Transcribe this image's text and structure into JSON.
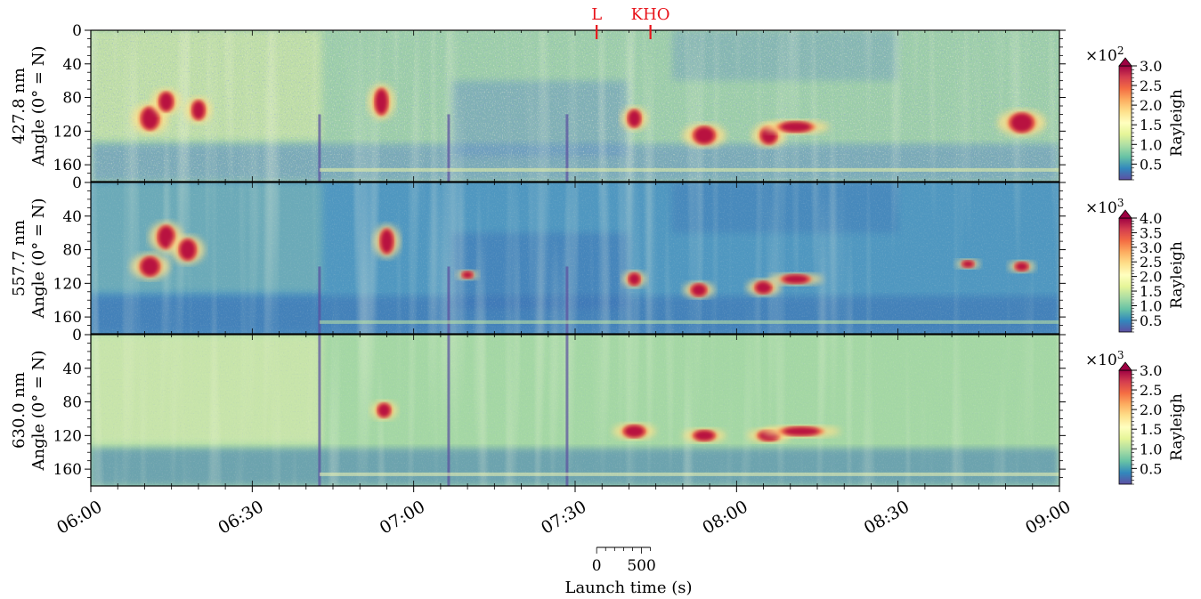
{
  "chart_data": {
    "type": "heatmap",
    "time_axis": {
      "ticks": [
        "06:00",
        "06:30",
        "07:00",
        "07:30",
        "08:00",
        "08:30",
        "09:00"
      ],
      "range_minutes": [
        0,
        180
      ]
    },
    "markers": [
      {
        "label": "L",
        "time_minutes": 94,
        "color": "#e8141b"
      },
      {
        "label": "KHO",
        "time_minutes": 104,
        "color": "#e8141b"
      }
    ],
    "panels": [
      {
        "name": "427.8 nm",
        "ylabel": "Angle (0° = N)",
        "yticks": [
          "0",
          "40",
          "80",
          "120",
          "160"
        ],
        "ylim": [
          0,
          180
        ],
        "colorbar": {
          "label": "Rayleigh",
          "exponent": "×10",
          "power": "2",
          "ticks": [
            "3.0",
            "2.5",
            "2.0",
            "1.5",
            "1.0",
            "0.5"
          ],
          "range": [
            0.1,
            3.0
          ]
        },
        "events": [
          {
            "t": 11,
            "angle": 105,
            "w": 2.4,
            "h": 26
          },
          {
            "t": 14,
            "angle": 85,
            "w": 1.8,
            "h": 22
          },
          {
            "t": 20,
            "angle": 95,
            "w": 1.6,
            "h": 22
          },
          {
            "t": 54,
            "angle": 85,
            "w": 1.6,
            "h": 30
          },
          {
            "t": 101,
            "angle": 105,
            "w": 1.6,
            "h": 20
          },
          {
            "t": 114,
            "angle": 125,
            "w": 3.0,
            "h": 20
          },
          {
            "t": 126,
            "angle": 125,
            "w": 2.2,
            "h": 20
          },
          {
            "t": 131,
            "angle": 115,
            "w": 5.0,
            "h": 12
          },
          {
            "t": 173,
            "angle": 110,
            "w": 3.4,
            "h": 22
          }
        ]
      },
      {
        "name": "557.7 nm",
        "ylabel": "Angle (0° = N)",
        "yticks": [
          "0",
          "40",
          "80",
          "120",
          "160"
        ],
        "ylim": [
          0,
          180
        ],
        "colorbar": {
          "label": "Rayleigh",
          "exponent": "×10",
          "power": "3",
          "ticks": [
            "4.0",
            "3.5",
            "3.0",
            "2.5",
            "2.0",
            "1.5",
            "1.0",
            "0.5"
          ],
          "range": [
            0.1,
            4.0
          ]
        },
        "events": [
          {
            "t": 11,
            "angle": 100,
            "w": 2.6,
            "h": 22
          },
          {
            "t": 14,
            "angle": 65,
            "w": 2.2,
            "h": 26
          },
          {
            "t": 18,
            "angle": 80,
            "w": 2.2,
            "h": 24
          },
          {
            "t": 55,
            "angle": 70,
            "w": 1.6,
            "h": 28
          },
          {
            "t": 70,
            "angle": 110,
            "w": 1.2,
            "h": 8
          },
          {
            "t": 101,
            "angle": 115,
            "w": 1.4,
            "h": 14
          },
          {
            "t": 113,
            "angle": 128,
            "w": 2.0,
            "h": 14
          },
          {
            "t": 125,
            "angle": 125,
            "w": 2.2,
            "h": 14
          },
          {
            "t": 131,
            "angle": 115,
            "w": 4.0,
            "h": 10
          },
          {
            "t": 163,
            "angle": 97,
            "w": 1.4,
            "h": 8
          },
          {
            "t": 173,
            "angle": 100,
            "w": 1.6,
            "h": 10
          }
        ]
      },
      {
        "name": "630.0 nm",
        "ylabel": "Angle (0° = N)",
        "yticks": [
          "0",
          "40",
          "80",
          "120",
          "160"
        ],
        "ylim": [
          0,
          180
        ],
        "colorbar": {
          "label": "Rayleigh",
          "exponent": "×10",
          "power": "3",
          "ticks": [
            "3.0",
            "2.5",
            "2.0",
            "1.5",
            "1.0",
            "0.5"
          ],
          "range": [
            0.1,
            3.0
          ]
        },
        "events": [
          {
            "t": 54.5,
            "angle": 90,
            "w": 1.6,
            "h": 16
          },
          {
            "t": 101,
            "angle": 115,
            "w": 3.0,
            "h": 14
          },
          {
            "t": 114,
            "angle": 120,
            "w": 3.0,
            "h": 12
          },
          {
            "t": 126,
            "angle": 120,
            "w": 3.0,
            "h": 12
          },
          {
            "t": 132,
            "angle": 115,
            "w": 6.0,
            "h": 10
          }
        ]
      }
    ],
    "scale_bar": {
      "ticks": [
        "0",
        "500"
      ],
      "label": "Launch time (s)"
    }
  }
}
